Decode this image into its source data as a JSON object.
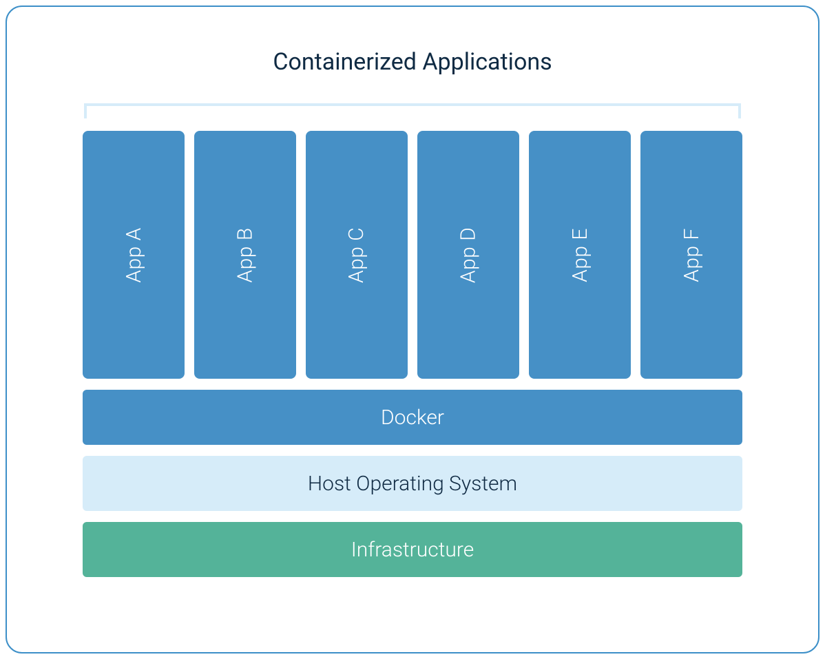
{
  "title": "Containerized Applications",
  "apps": [
    {
      "label": "App A"
    },
    {
      "label": "App B"
    },
    {
      "label": "App C"
    },
    {
      "label": "App D"
    },
    {
      "label": "App E"
    },
    {
      "label": "App F"
    }
  ],
  "layers": {
    "docker": "Docker",
    "host_os": "Host Operating System",
    "infrastructure": "Infrastructure"
  },
  "style": {
    "frame_border_color": "#3c8fc8",
    "frame_border_radius": 24,
    "title_color": "#0f2a43",
    "title_fontsize": 34,
    "bracket_color": "#d6ecf9",
    "bracket_stroke": 4,
    "app_bg": "#4690c6",
    "app_text_color": "#ffffff",
    "app_fontsize": 30,
    "app_height": 360,
    "app_gap": 14,
    "app_border_radius": 8,
    "docker_bg": "#4690c6",
    "docker_text_color": "#ffffff",
    "host_bg": "#d6ecf9",
    "host_text_color": "#0f2a43",
    "infra_bg": "#54b399",
    "infra_text_color": "#ffffff",
    "layer_height": 80,
    "layer_fontsize": 30,
    "layer_gap": 16,
    "layer_border_radius": 6,
    "background_color": "#ffffff"
  }
}
